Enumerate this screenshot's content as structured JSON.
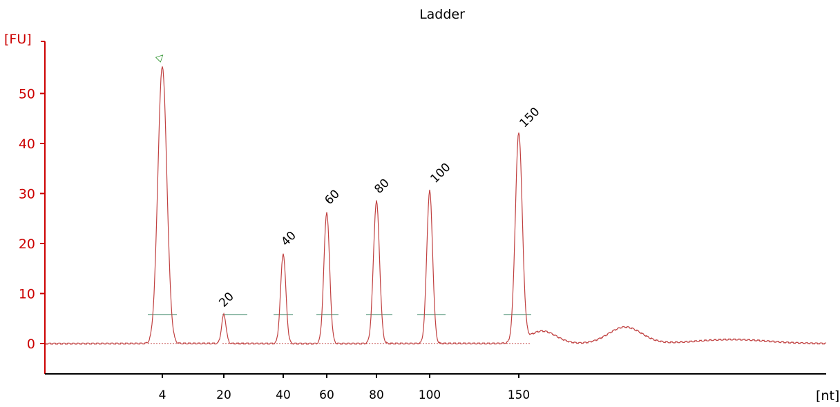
{
  "chart_data": {
    "type": "line",
    "title": "Ladder",
    "ylabel": "[FU]",
    "xlabel": "[nt]",
    "ylim": [
      -6,
      60
    ],
    "yticks": [
      0,
      10,
      20,
      30,
      40,
      50
    ],
    "xticks": [
      "4",
      "20",
      "40",
      "60",
      "80",
      "100",
      "150"
    ],
    "colors": {
      "axis": "#cc0000",
      "trace": "#c04040",
      "baseline_marker": "#2e7d5b",
      "marker_label": "#1a8a1a"
    },
    "peaks": [
      {
        "label": "4",
        "size_nt": 4,
        "height_fu": 55.5,
        "marker_icon": "lower-marker-icon"
      },
      {
        "label": "20",
        "size_nt": 20,
        "height_fu": 5.8
      },
      {
        "label": "40",
        "size_nt": 40,
        "height_fu": 18.0
      },
      {
        "label": "60",
        "size_nt": 60,
        "height_fu": 26.3
      },
      {
        "label": "80",
        "size_nt": 80,
        "height_fu": 28.5
      },
      {
        "label": "100",
        "size_nt": 100,
        "height_fu": 30.6
      },
      {
        "label": "150",
        "size_nt": 150,
        "height_fu": 41.7
      }
    ],
    "broad_features": [
      {
        "description_hidden": true,
        "height_fu": 2.5
      },
      {
        "description_hidden": true,
        "height_fu": 3.3
      },
      {
        "description_hidden": true,
        "height_fu": 0.8
      }
    ]
  }
}
